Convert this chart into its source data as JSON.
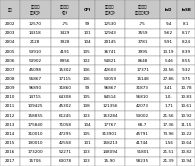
{
  "headers": [
    "年份",
    "地方政府\n债务(亿)",
    "影子銀行\n(亿)",
    "CPI",
    "不变价格\n债务(亿)",
    "不变价格\n影子銀行(亿)",
    "lnD",
    "lnSB"
  ],
  "rows": [
    [
      "2002",
      "12570",
      "-75",
      "99",
      "12530",
      "-75",
      "9.4",
      "8.1"
    ],
    [
      "2003",
      "14318",
      "3429",
      "101",
      "12943",
      "3559",
      "9.62",
      "8.17"
    ],
    [
      "2004",
      "2128",
      "3928",
      "104",
      "20145",
      "3781",
      "9.91",
      "8.24"
    ],
    [
      "2005",
      "53910",
      "4191",
      "105",
      "36741",
      "3995",
      "13.19",
      "8.39"
    ],
    [
      "2006",
      "53902",
      "8956",
      "102",
      "54821",
      "8648",
      "5.46",
      "8.55"
    ],
    [
      "2007",
      "45098",
      "15302",
      "106",
      "42603",
      "17371",
      "23.56",
      "9.32"
    ],
    [
      "2008",
      "55867",
      "17115",
      "106",
      "53059",
      "15148",
      "27.86",
      "9.75"
    ],
    [
      "2009",
      "96890",
      "31860",
      "99",
      "96867",
      "31873",
      "3.41",
      "10.78"
    ],
    [
      "2010",
      "14715",
      "64308",
      "105",
      "84514",
      "56810",
      "1.0-",
      "10.83"
    ],
    [
      "2011",
      "109425",
      "45302",
      "108",
      "121356",
      "42073",
      "1.71",
      "10.61"
    ],
    [
      "2012",
      "158855",
      "61245",
      "103",
      "153284",
      "53002",
      "21.56",
      "10.92"
    ],
    [
      "2013",
      "175840",
      "71058",
      "104",
      "17767",
      "68-7",
      "17.36",
      "11.15"
    ],
    [
      "2014",
      "310010",
      "47295",
      "105",
      "313901",
      "45791",
      "73.96",
      "10.22"
    ],
    [
      "2015",
      "190010",
      "42558",
      "101",
      "158213",
      "41744",
      "1.56",
      "10.64"
    ],
    [
      "2016",
      "173200",
      "52271",
      "103",
      "148094",
      "51801",
      "21.51",
      "10.82"
    ],
    [
      "2017",
      "15706",
      "63078",
      "103",
      "15-90",
      "58235",
      "21.39",
      "10.94"
    ]
  ],
  "header_bg": "#c8c8c8",
  "row_bg": "#ffffff",
  "line_color": "#888888",
  "fontsize": 3.0,
  "header_fontsize": 2.8
}
